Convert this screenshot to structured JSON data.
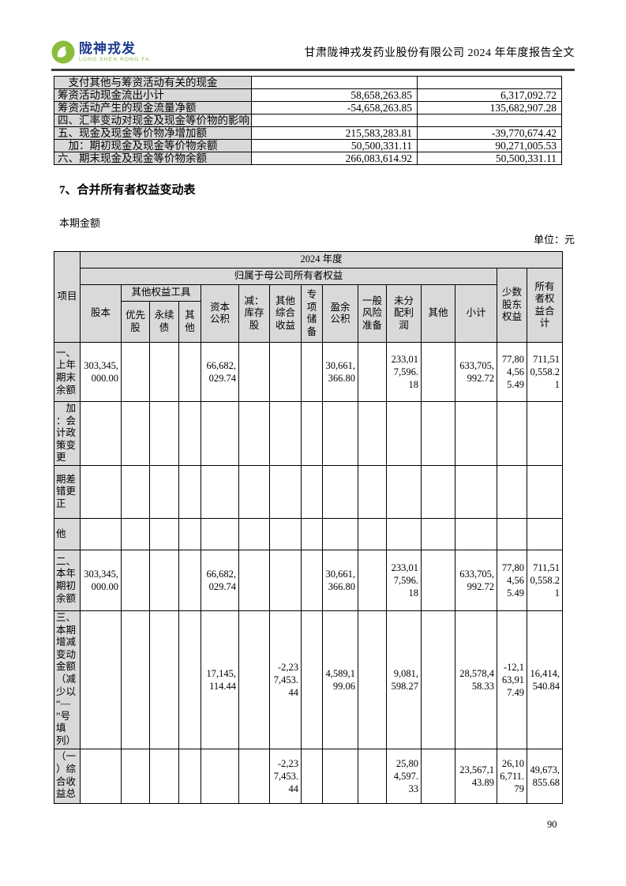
{
  "header": {
    "logo_text": "陇神戎发",
    "logo_subtext": "LONG SHEN RONG FA",
    "doc_title": "甘肃陇神戎发药业股份有限公司 2024 年年度报告全文",
    "brand_green": "#86b93e",
    "brand_blue": "#1d3a8e"
  },
  "cash_flow_table": {
    "rows": [
      {
        "label": "　支付其他与筹资活动有关的现金",
        "current": "",
        "previous": ""
      },
      {
        "label": "筹资活动现金流出小计",
        "current": "58,658,263.85",
        "previous": "6,317,092.72"
      },
      {
        "label": "筹资活动产生的现金流量净额",
        "current": "-54,658,263.85",
        "previous": "135,682,907.28"
      },
      {
        "label": "四、汇率变动对现金及现金等价物的影响",
        "current": "",
        "previous": ""
      },
      {
        "label": "五、现金及现金等价物净增加额",
        "current": "215,583,283.81",
        "previous": "-39,770,674.42"
      },
      {
        "label": "　加：期初现金及现金等价物余额",
        "current": "50,500,331.11",
        "previous": "90,271,005.53"
      },
      {
        "label": "六、期末现金及现金等价物余额",
        "current": "266,083,614.92",
        "previous": "50,500,331.11"
      }
    ]
  },
  "section": {
    "heading": "7、合并所有者权益变动表",
    "period_label": "本期金额",
    "unit_label": "单位：元"
  },
  "equity_table": {
    "head": {
      "item": "项目",
      "year": "2024 年度",
      "parent_equity": "归属于母公司所有者权益",
      "share_capital": "股本",
      "other_equity_instruments": "其他权益工具",
      "preferred_shares": "优先\n股",
      "perpetual_bonds": "永续\n债",
      "oei_other": "其\n他",
      "capital_reserve": "资本\n公积",
      "less_treasury_shares": "减：\n库存\n股",
      "other_comprehensive_income": "其他\n综合\n收益",
      "special_reserve": "专\n项\n储\n备",
      "surplus_reserve": "盈余\n公积",
      "general_risk_reserve": "一般\n风险\n准备",
      "retained_profit": "未分\n配利\n润",
      "other": "其他",
      "subtotal": "小计",
      "minority_interest": "少数\n股东\n权益",
      "total_equity": "所有\n者权\n益合\n计"
    },
    "rows": [
      {
        "label": "一、\n上年\n期末\n余额",
        "c": [
          "303,345,000.00",
          "",
          "",
          "",
          "66,682,029.74",
          "",
          "",
          "",
          "30,661,366.80",
          "",
          "233,017,596.18",
          "",
          "633,705,992.72",
          "77,804,565.49",
          "711,510,558.21"
        ]
      },
      {
        "label": "　加\n：会\n计政\n策变\n更",
        "c": [
          "",
          "",
          "",
          "",
          "",
          "",
          "",
          "",
          "",
          "",
          "",
          "",
          "",
          "",
          ""
        ]
      },
      {
        "label": "期差\n错更\n正",
        "c": [
          "",
          "",
          "",
          "",
          "",
          "",
          "",
          "",
          "",
          "",
          "",
          "",
          "",
          "",
          ""
        ]
      },
      {
        "label": "他",
        "c": [
          "",
          "",
          "",
          "",
          "",
          "",
          "",
          "",
          "",
          "",
          "",
          "",
          "",
          "",
          ""
        ]
      },
      {
        "label": "二、\n本年\n期初\n余额",
        "c": [
          "303,345,000.00",
          "",
          "",
          "",
          "66,682,029.74",
          "",
          "",
          "",
          "30,661,366.80",
          "",
          "233,017,596.18",
          "",
          "633,705,992.72",
          "77,804,565.49",
          "711,510,558.21"
        ]
      },
      {
        "label": "三、\n本期\n增减\n变动\n金额\n（减\n少以\n“—\n”号\n填\n列）",
        "c": [
          "",
          "",
          "",
          "",
          "17,145,114.44",
          "",
          "-2,237,453.44",
          "",
          "4,589,199.06",
          "",
          "9,081,598.27",
          "",
          "28,578,458.33",
          "-12,163,917.49",
          "16,414,540.84"
        ]
      },
      {
        "label": "（一\n）综\n合收\n益总",
        "c": [
          "",
          "",
          "",
          "",
          "",
          "",
          "-2,237,453.44",
          "",
          "",
          "",
          "25,804,597.33",
          "",
          "23,567,143.89",
          "26,106,711.79",
          "49,673,855.68"
        ]
      }
    ]
  },
  "page_number": "90"
}
